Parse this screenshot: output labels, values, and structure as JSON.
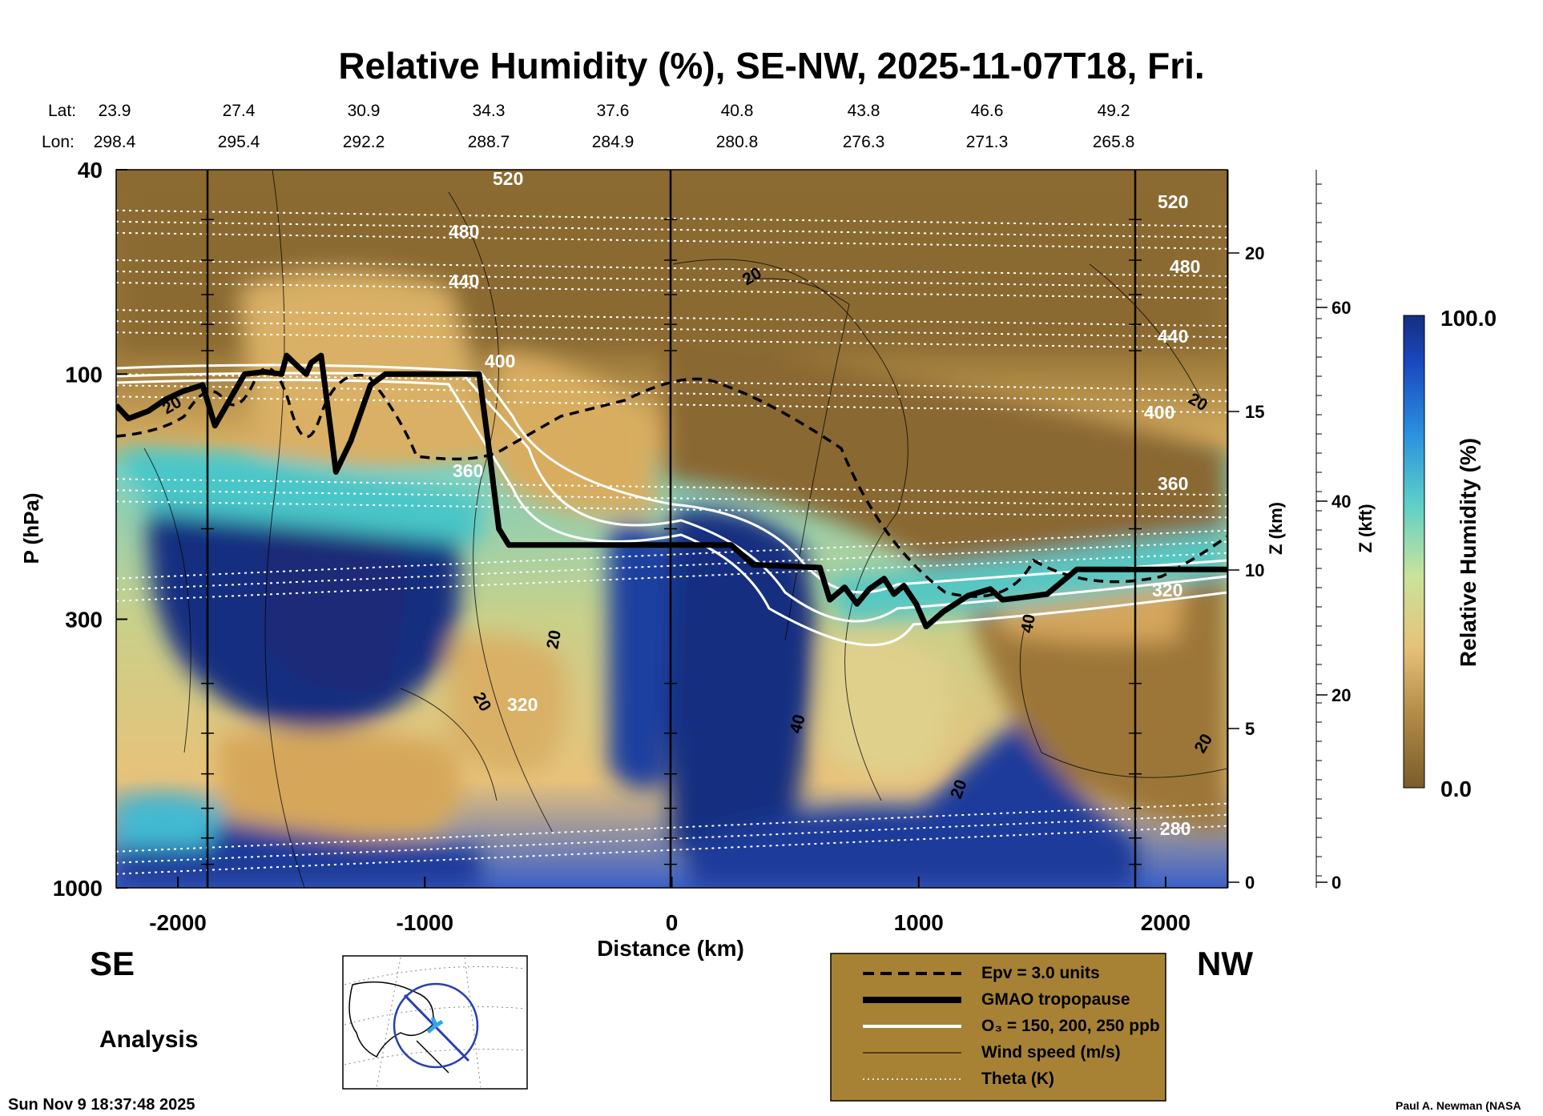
{
  "chart_data": {
    "type": "contour-cross-section",
    "title": "Relative Humidity (%), SE-NW, 2025-11-07T18, Fri.",
    "xlabel": "Distance (km)",
    "ylabel": "P (hPa)",
    "y2label": "Z (km)",
    "y3label": "Z (kft)",
    "colorbar_label": "Relative Humidity (%)",
    "colorbar_max": "100.0",
    "colorbar_min": "0.0",
    "xlim": [
      -2250,
      2250
    ],
    "ylim_hpa": [
      1000,
      40
    ],
    "x_ticks": [
      -2000,
      -1000,
      0,
      1000,
      2000
    ],
    "p_ticks": [
      "40",
      "100",
      "300",
      "1000"
    ],
    "z_km_ticks": [
      "0",
      "5",
      "10",
      "15",
      "20"
    ],
    "z_kft_ticks": [
      "0",
      "20",
      "40",
      "60"
    ],
    "lat_label": "Lat:",
    "lon_label": "Lon:",
    "lats": [
      "23.9",
      "27.4",
      "30.9",
      "34.3",
      "37.6",
      "40.8",
      "43.8",
      "46.6",
      "49.2"
    ],
    "lons": [
      "298.4",
      "295.4",
      "292.2",
      "288.7",
      "284.9",
      "280.8",
      "276.3",
      "271.3",
      "265.8"
    ],
    "tropopause_hpa": [
      [
        -2250,
        115
      ],
      [
        -2200,
        122
      ],
      [
        -2120,
        118
      ],
      [
        -2050,
        112
      ],
      [
        -1980,
        108
      ],
      [
        -1900,
        105
      ],
      [
        -1850,
        126
      ],
      [
        -1780,
        110
      ],
      [
        -1730,
        100
      ],
      [
        -1650,
        99
      ],
      [
        -1580,
        100
      ],
      [
        -1560,
        92
      ],
      [
        -1520,
        96
      ],
      [
        -1480,
        100
      ],
      [
        -1460,
        95
      ],
      [
        -1420,
        92
      ],
      [
        -1380,
        130
      ],
      [
        -1360,
        155
      ],
      [
        -1300,
        135
      ],
      [
        -1220,
        105
      ],
      [
        -1160,
        100
      ],
      [
        -1000,
        100
      ],
      [
        -860,
        100
      ],
      [
        -780,
        100
      ],
      [
        -740,
        140
      ],
      [
        -700,
        200
      ],
      [
        -660,
        215
      ],
      [
        -400,
        215
      ],
      [
        -200,
        215
      ],
      [
        240,
        215
      ],
      [
        330,
        235
      ],
      [
        600,
        238
      ],
      [
        640,
        275
      ],
      [
        700,
        260
      ],
      [
        750,
        280
      ],
      [
        800,
        262
      ],
      [
        860,
        250
      ],
      [
        900,
        268
      ],
      [
        940,
        258
      ],
      [
        990,
        280
      ],
      [
        1030,
        310
      ],
      [
        1100,
        290
      ],
      [
        1200,
        270
      ],
      [
        1290,
        262
      ],
      [
        1340,
        275
      ],
      [
        1420,
        272
      ],
      [
        1520,
        268
      ],
      [
        1640,
        240
      ],
      [
        1800,
        240
      ],
      [
        2000,
        240
      ],
      [
        2250,
        240
      ]
    ],
    "theta_levels": [
      {
        "value": "520",
        "hpa": 48
      },
      {
        "value": "480",
        "hpa": 60
      },
      {
        "value": "440",
        "hpa": 75
      },
      {
        "value": "400",
        "hpa": 100
      },
      {
        "value": "360",
        "hpa": 160
      },
      {
        "value": "320",
        "hpa": 250
      },
      {
        "value": "280",
        "hpa": 850
      }
    ],
    "wind_labels": [
      "20",
      "20",
      "20",
      "20",
      "20",
      "20",
      "40",
      "40",
      "20"
    ],
    "region_left": "SE",
    "region_right": "NW",
    "analysis_label": "Analysis"
  },
  "legend": {
    "items": [
      {
        "style": "dashed",
        "label": "Epv = 3.0 units"
      },
      {
        "style": "thick",
        "label": "GMAO tropopause"
      },
      {
        "style": "white",
        "label": "O₃ = 150, 200, 250 ppb"
      },
      {
        "style": "thin",
        "label": "Wind speed (m/s)"
      },
      {
        "style": "dotted",
        "label": "Theta (K)"
      }
    ]
  },
  "footer": {
    "timestamp": "Sun Nov  9 18:37:48 2025",
    "credit": "Paul A. Newman (NASA"
  },
  "colors": {
    "wet": "#143a8a",
    "cyan": "#47c3c7",
    "dry": "#8b6a33",
    "tan": "#d7aa5c",
    "legend_bg": "#a78235"
  }
}
